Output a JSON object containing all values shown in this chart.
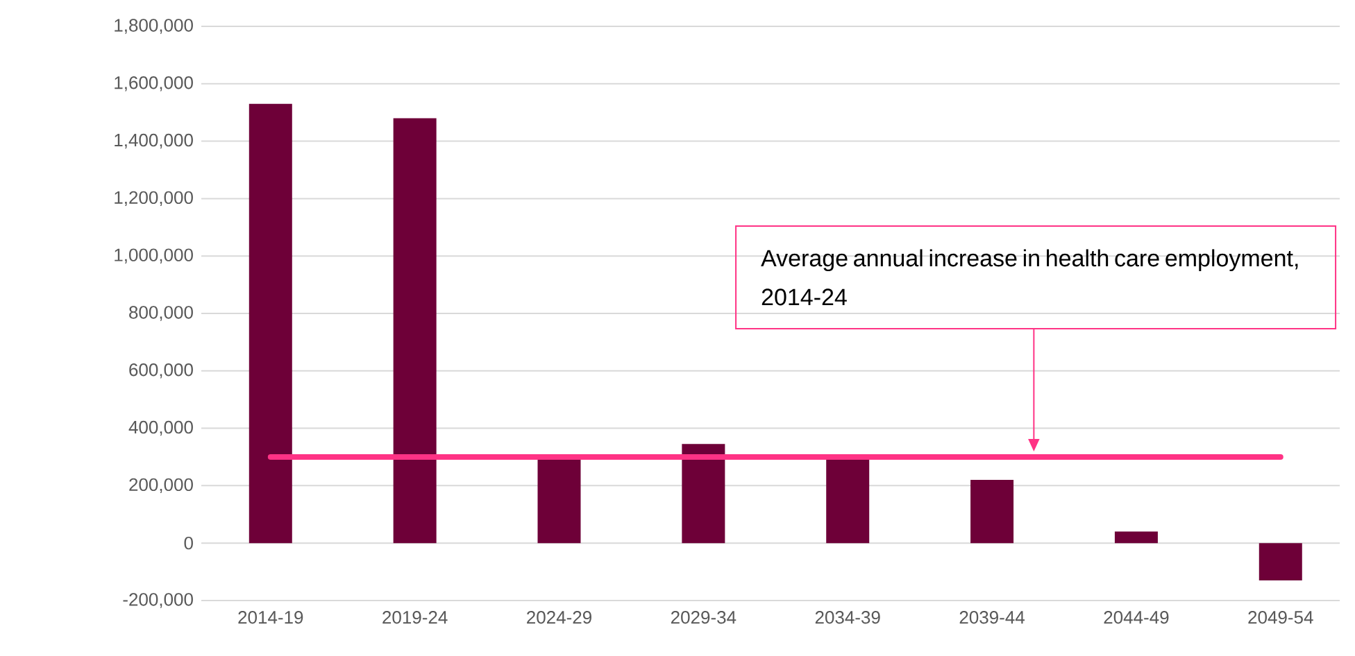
{
  "chart_data": {
    "type": "bar",
    "categories": [
      "2014-19",
      "2019-24",
      "2024-29",
      "2029-34",
      "2034-39",
      "2039-44",
      "2044-49",
      "2049-54"
    ],
    "values": [
      1530000,
      1480000,
      290000,
      345000,
      290000,
      220000,
      40000,
      -130000
    ],
    "color": "#6e0038",
    "ylim": [
      -200000,
      1800000
    ],
    "yticks": [
      {
        "value": -200000,
        "label": "-200,000"
      },
      {
        "value": 0,
        "label": "0"
      },
      {
        "value": 200000,
        "label": "200,000"
      },
      {
        "value": 400000,
        "label": "400,000"
      },
      {
        "value": 600000,
        "label": "600,000"
      },
      {
        "value": 800000,
        "label": "800,000"
      },
      {
        "value": 1000000,
        "label": "1,000,000"
      },
      {
        "value": 1200000,
        "label": "1,200,000"
      },
      {
        "value": 1400000,
        "label": "1,400,000"
      },
      {
        "value": 1600000,
        "label": "1,600,000"
      },
      {
        "value": 1800000,
        "label": "1,800,000"
      }
    ],
    "grid": "y",
    "ref_lines": [
      {
        "axis": "y",
        "value": 300000,
        "color": "#ff3385"
      }
    ],
    "annotations": [
      "Average annual increase in health care employment, 2014-24"
    ]
  }
}
